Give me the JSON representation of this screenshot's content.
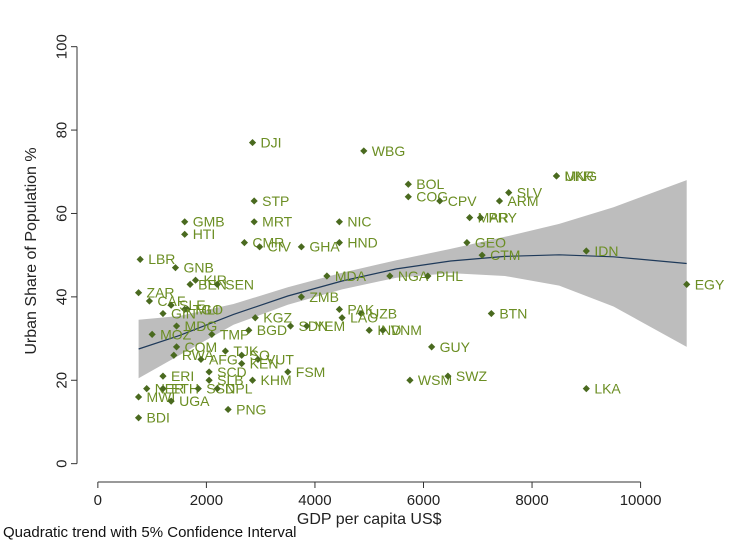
{
  "chart_data": {
    "type": "scatter",
    "title": "",
    "xlabel": "GDP per capita US$",
    "ylabel": "Urban Share of Population %",
    "xlim": [
      -200,
      11500
    ],
    "ylim": [
      -2,
      104
    ],
    "xticks": [
      0,
      2000,
      4000,
      6000,
      8000,
      10000
    ],
    "yticks": [
      0,
      20,
      40,
      60,
      80,
      100
    ],
    "grid": false,
    "legend": "none",
    "note": "Quadratic trend with 5% Confidence Interval",
    "colors": {
      "point": "#4a6a1f",
      "label": "#6b8e23",
      "trend": "#1f3a5a",
      "band": "#bdbdbd",
      "axis": "#333333"
    },
    "points": [
      {
        "label": "DJI",
        "x": 2850,
        "y": 77
      },
      {
        "label": "WBG",
        "x": 4900,
        "y": 75
      },
      {
        "label": "BOL",
        "x": 5720,
        "y": 67
      },
      {
        "label": "COG",
        "x": 5720,
        "y": 64
      },
      {
        "label": "CPV",
        "x": 6300,
        "y": 63
      },
      {
        "label": "SLV",
        "x": 7570,
        "y": 65
      },
      {
        "label": "ARM",
        "x": 7400,
        "y": 63
      },
      {
        "label": "UKR",
        "x": 8450,
        "y": 69
      },
      {
        "label": "MNG",
        "x": 8450,
        "y": 69
      },
      {
        "label": "STP",
        "x": 2880,
        "y": 63
      },
      {
        "label": "GMB",
        "x": 1600,
        "y": 58
      },
      {
        "label": "MRT",
        "x": 2880,
        "y": 58
      },
      {
        "label": "NIC",
        "x": 4450,
        "y": 58
      },
      {
        "label": "MAR",
        "x": 6850,
        "y": 59
      },
      {
        "label": "PRY",
        "x": 7050,
        "y": 59
      },
      {
        "label": "HTI",
        "x": 1600,
        "y": 55
      },
      {
        "label": "CMR",
        "x": 2700,
        "y": 53
      },
      {
        "label": "CIV",
        "x": 2980,
        "y": 52
      },
      {
        "label": "GHA",
        "x": 3750,
        "y": 52
      },
      {
        "label": "HND",
        "x": 4450,
        "y": 53
      },
      {
        "label": "GEO",
        "x": 6800,
        "y": 53
      },
      {
        "label": "CTM",
        "x": 7080,
        "y": 50
      },
      {
        "label": "IDN",
        "x": 9000,
        "y": 51
      },
      {
        "label": "EGY",
        "x": 10850,
        "y": 43
      },
      {
        "label": "LBR",
        "x": 780,
        "y": 49
      },
      {
        "label": "GNB",
        "x": 1430,
        "y": 47
      },
      {
        "label": "KIR",
        "x": 1800,
        "y": 44
      },
      {
        "label": "BEN",
        "x": 1700,
        "y": 43
      },
      {
        "label": "SEN",
        "x": 2200,
        "y": 43
      },
      {
        "label": "MDA",
        "x": 4220,
        "y": 45
      },
      {
        "label": "NGA",
        "x": 5380,
        "y": 45
      },
      {
        "label": "PHL",
        "x": 6080,
        "y": 45
      },
      {
        "label": "ZAR",
        "x": 750,
        "y": 41
      },
      {
        "label": "CAF",
        "x": 950,
        "y": 39
      },
      {
        "label": "SLE",
        "x": 1350,
        "y": 38
      },
      {
        "label": "TGO",
        "x": 1600,
        "y": 37
      },
      {
        "label": "MLI",
        "x": 1650,
        "y": 37
      },
      {
        "label": "ZMB",
        "x": 3750,
        "y": 40
      },
      {
        "label": "PAK",
        "x": 4450,
        "y": 37
      },
      {
        "label": "UZB",
        "x": 4850,
        "y": 36
      },
      {
        "label": "LAO",
        "x": 4500,
        "y": 35
      },
      {
        "label": "BTN",
        "x": 7250,
        "y": 36
      },
      {
        "label": "GIN",
        "x": 1200,
        "y": 36
      },
      {
        "label": "MDG",
        "x": 1450,
        "y": 33
      },
      {
        "label": "KGZ",
        "x": 2900,
        "y": 35
      },
      {
        "label": "SDN",
        "x": 3550,
        "y": 33
      },
      {
        "label": "YEM",
        "x": 3850,
        "y": 33
      },
      {
        "label": "IND",
        "x": 5000,
        "y": 32
      },
      {
        "label": "VNM",
        "x": 5250,
        "y": 32
      },
      {
        "label": "MOZ",
        "x": 1000,
        "y": 31
      },
      {
        "label": "TMP",
        "x": 2100,
        "y": 31
      },
      {
        "label": "BGD",
        "x": 2780,
        "y": 32
      },
      {
        "label": "COM",
        "x": 1450,
        "y": 28
      },
      {
        "label": "RWA",
        "x": 1400,
        "y": 26
      },
      {
        "label": "GUY",
        "x": 6150,
        "y": 28
      },
      {
        "label": "AFG",
        "x": 1900,
        "y": 25
      },
      {
        "label": "TJK",
        "x": 2350,
        "y": 27
      },
      {
        "label": "SO",
        "x": 2650,
        "y": 26
      },
      {
        "label": "VUT",
        "x": 2950,
        "y": 25
      },
      {
        "label": "KEN",
        "x": 2650,
        "y": 24
      },
      {
        "label": "FSM",
        "x": 3500,
        "y": 22
      },
      {
        "label": "SCD",
        "x": 2050,
        "y": 22
      },
      {
        "label": "SLB",
        "x": 2050,
        "y": 20
      },
      {
        "label": "KHM",
        "x": 2850,
        "y": 20
      },
      {
        "label": "WSM",
        "x": 5750,
        "y": 20
      },
      {
        "label": "SWZ",
        "x": 6450,
        "y": 21
      },
      {
        "label": "LKA",
        "x": 9000,
        "y": 18
      },
      {
        "label": "ERI",
        "x": 1200,
        "y": 21
      },
      {
        "label": "NER",
        "x": 900,
        "y": 18
      },
      {
        "label": "ETH",
        "x": 1200,
        "y": 18
      },
      {
        "label": "SSD",
        "x": 1850,
        "y": 18
      },
      {
        "label": "NPL",
        "x": 2200,
        "y": 18
      },
      {
        "label": "MWI",
        "x": 750,
        "y": 16
      },
      {
        "label": "UGA",
        "x": 1350,
        "y": 15
      },
      {
        "label": "PNG",
        "x": 2400,
        "y": 13
      },
      {
        "label": "BDI",
        "x": 750,
        "y": 11
      }
    ],
    "trend": {
      "x": [
        750,
        1500,
        2500,
        3500,
        4500,
        5500,
        6500,
        7500,
        8500,
        9500,
        10850
      ],
      "y": [
        27.5,
        30.7,
        35.8,
        40.2,
        43.8,
        46.7,
        48.6,
        49.7,
        50.1,
        49.6,
        48
      ],
      "upper": [
        34.5,
        35.4,
        38.3,
        42.3,
        45.8,
        48.8,
        51.5,
        54.4,
        57.5,
        61.5,
        68
      ],
      "lower": [
        20.5,
        26,
        33.3,
        38.1,
        41.8,
        44.6,
        45.7,
        45,
        42.7,
        37.7,
        28
      ]
    }
  }
}
